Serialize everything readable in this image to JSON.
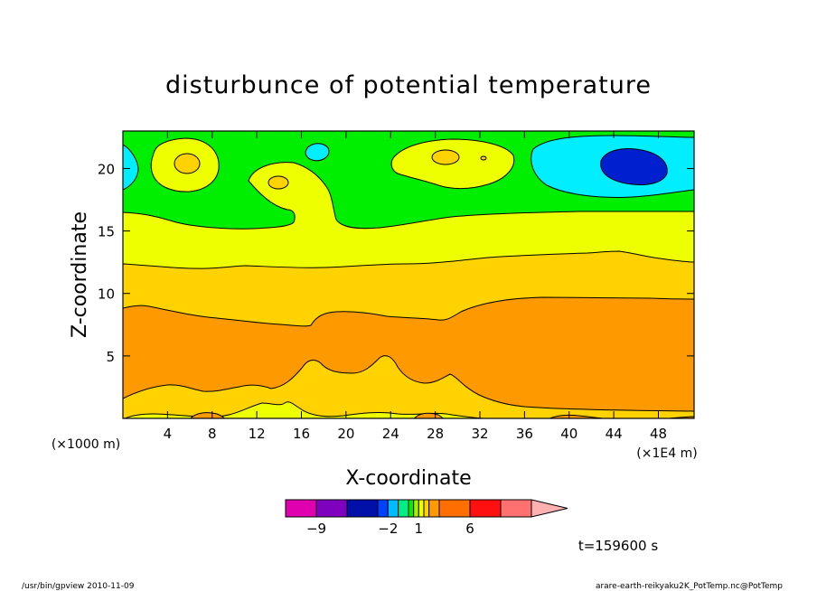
{
  "chart_data": {
    "type": "heatmap",
    "title": "disturbunce of potential temperature",
    "xlabel": "X-coordinate",
    "ylabel": "Z-coordinate",
    "x_unit": "(×1E4 m)",
    "y_unit": "(×1000 m)",
    "xlim": [
      0,
      51.2
    ],
    "ylim": [
      0,
      23
    ],
    "x_ticks": [
      4,
      8,
      12,
      16,
      20,
      24,
      28,
      32,
      36,
      40,
      44,
      48
    ],
    "y_ticks": [
      5,
      10,
      15,
      20
    ],
    "time_label": "t=159600 s",
    "colorbar": {
      "labels": [
        {
          "value": -9,
          "text": "−9"
        },
        {
          "value": -2,
          "text": "−2"
        },
        {
          "value": 1,
          "text": "1"
        },
        {
          "value": 6,
          "text": "6"
        }
      ],
      "levels": [
        {
          "from": -12,
          "to": -9,
          "color": "#e000b0"
        },
        {
          "from": -9,
          "to": -6,
          "color": "#8000c0"
        },
        {
          "from": -6,
          "to": -3,
          "color": "#0010a8"
        },
        {
          "from": -3,
          "to": -2,
          "color": "#0040ff"
        },
        {
          "from": -2,
          "to": -1,
          "color": "#00bbff"
        },
        {
          "from": -1,
          "to": 0,
          "color": "#00ee88"
        },
        {
          "from": 0,
          "to": 0.5,
          "color": "#00ee00"
        },
        {
          "from": 0.5,
          "to": 1,
          "color": "#a8f000"
        },
        {
          "from": 1,
          "to": 1.5,
          "color": "#eeff00"
        },
        {
          "from": 1.5,
          "to": 2,
          "color": "#ffd200"
        },
        {
          "from": 2,
          "to": 3,
          "color": "#ff9900"
        },
        {
          "from": 3,
          "to": 6,
          "color": "#ff6e00"
        },
        {
          "from": 6,
          "to": 9,
          "color": "#ff1010"
        },
        {
          "from": 9,
          "to": 12,
          "color": "#ff7070"
        },
        {
          "from": 12,
          "to": 15,
          "color": "#ffb0b0"
        }
      ]
    }
  },
  "footer": {
    "left": "/usr/bin/gpview   2010-11-09",
    "right": "arare-earth-reikyaku2K_PotTemp.nc@PotTemp"
  }
}
